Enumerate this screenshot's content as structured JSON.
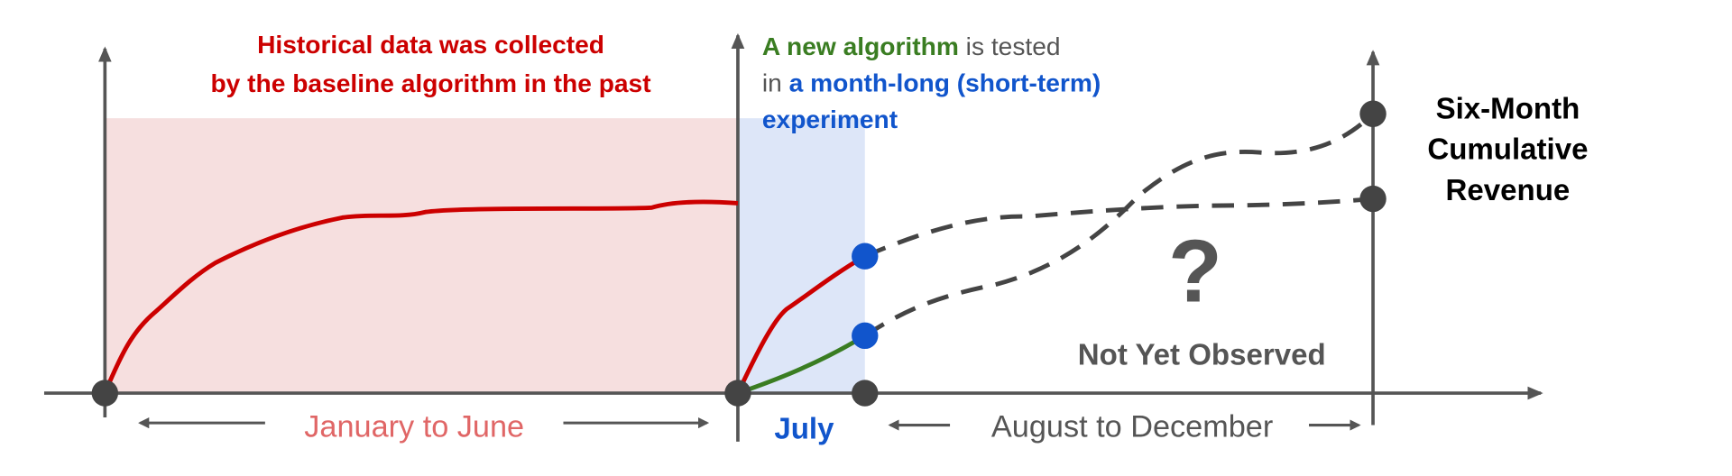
{
  "annotations": {
    "history": [
      "Historical data was collected",
      "by the baseline algorithm in the past"
    ],
    "experiment": {
      "line1": {
        "highlight": "A new algorithm",
        "rest": " is tested"
      },
      "line2": {
        "lead": "in ",
        "highlight": "a month-long (short-term)"
      },
      "line3": "experiment"
    },
    "outcome": [
      "Six-Month",
      "Cumulative",
      "Revenue"
    ],
    "unknown": "?",
    "not_observed": "Not Yet Observed"
  },
  "periods": {
    "past": "January to June",
    "experiment": "July",
    "future": "August to December"
  }
}
